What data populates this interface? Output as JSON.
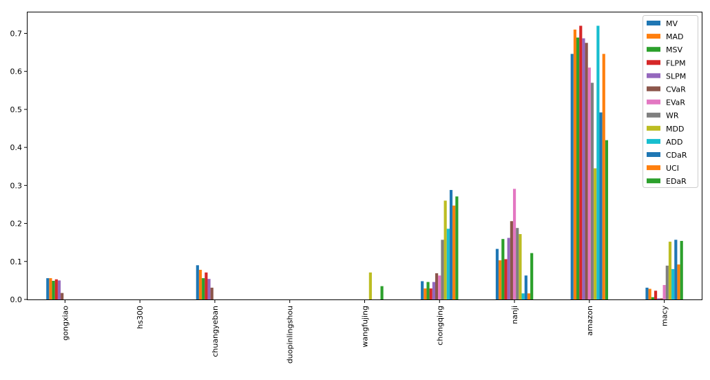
{
  "chart_data": {
    "type": "bar",
    "title": "",
    "xlabel": "",
    "ylabel": "",
    "ylim": [
      0,
      0.757
    ],
    "yticks": [
      "0.0",
      "0.1",
      "0.2",
      "0.3",
      "0.4",
      "0.5",
      "0.6",
      "0.7"
    ],
    "legend_position": "top-right",
    "categories": [
      "gongxiao",
      "hs300",
      "chuangyeban",
      "duopinlingshou",
      "wangfujing",
      "chongqing",
      "nanji",
      "amazon",
      "macy"
    ],
    "series": [
      {
        "name": "MV",
        "color": "#1f77b4",
        "values": [
          0.056,
          0,
          0.09,
          0,
          0,
          0.048,
          0.133,
          0.646,
          0.031
        ]
      },
      {
        "name": "MAD",
        "color": "#ff7f0e",
        "values": [
          0.056,
          0,
          0.078,
          0,
          0,
          0.029,
          0.103,
          0.71,
          0.028
        ]
      },
      {
        "name": "MSV",
        "color": "#2ca02c",
        "values": [
          0.049,
          0,
          0.056,
          0,
          0,
          0.046,
          0.159,
          0.689,
          0.006
        ]
      },
      {
        "name": "FLPM",
        "color": "#d62728",
        "values": [
          0.053,
          0,
          0.071,
          0,
          0,
          0.029,
          0.106,
          0.72,
          0.023
        ]
      },
      {
        "name": "SLPM",
        "color": "#9467bd",
        "values": [
          0.05,
          0,
          0.054,
          0,
          0,
          0.046,
          0.162,
          0.687,
          0.003
        ]
      },
      {
        "name": "CVaR",
        "color": "#8c564b",
        "values": [
          0.017,
          0,
          0.031,
          0,
          0,
          0.069,
          0.206,
          0.675,
          0.003
        ]
      },
      {
        "name": "EVaR",
        "color": "#e377c2",
        "values": [
          0,
          0,
          0,
          0,
          0,
          0.063,
          0.291,
          0.61,
          0.038
        ]
      },
      {
        "name": "WR",
        "color": "#7f7f7f",
        "values": [
          0,
          0,
          0,
          0,
          0,
          0.157,
          0.188,
          0.57,
          0.089
        ]
      },
      {
        "name": "MDD",
        "color": "#bcbd22",
        "values": [
          0,
          0,
          0,
          0,
          0.071,
          0.26,
          0.172,
          0.345,
          0.152
        ]
      },
      {
        "name": "ADD",
        "color": "#17becf",
        "values": [
          0,
          0,
          0,
          0,
          0,
          0.186,
          0.016,
          0.72,
          0.08
        ]
      },
      {
        "name": "CDaR",
        "color": "#1f77b4",
        "values": [
          0,
          0,
          0,
          0,
          0,
          0.288,
          0.063,
          0.492,
          0.157
        ]
      },
      {
        "name": "UCI",
        "color": "#ff7f0e",
        "values": [
          0,
          0,
          0,
          0,
          0,
          0.247,
          0.016,
          0.646,
          0.092
        ]
      },
      {
        "name": "EDaR",
        "color": "#2ca02c",
        "values": [
          0,
          0,
          0,
          0,
          0.035,
          0.271,
          0.122,
          0.419,
          0.154
        ]
      }
    ]
  }
}
